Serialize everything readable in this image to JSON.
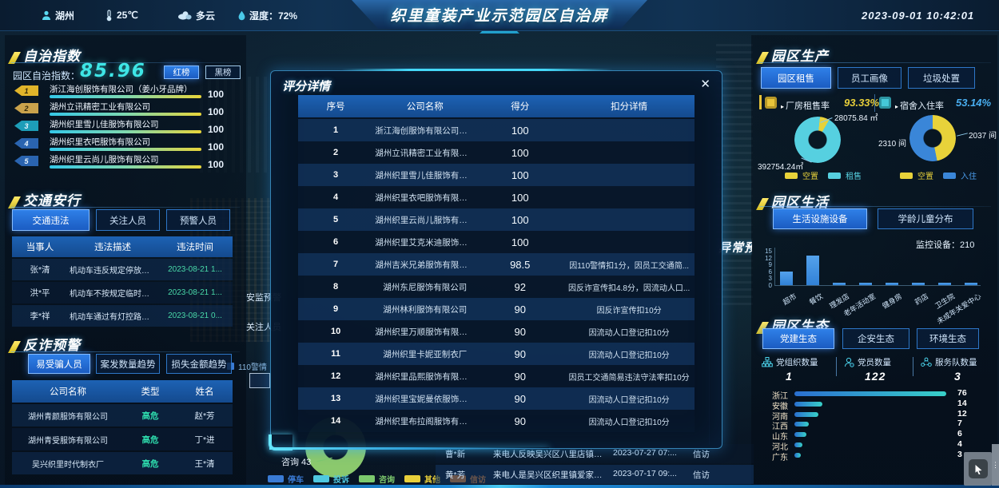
{
  "header": {
    "location": "湖州",
    "temperature": "25℃",
    "weather": "多云",
    "humidity": "湿度：72%",
    "title": "织里童装产业示范园区自治屏",
    "datetime": "2023-09-01 10:42:01"
  },
  "autonomy": {
    "title": "自治指数",
    "index_label": "园区自治指数：",
    "index_value": "85.96",
    "buttons": {
      "red": "红榜",
      "black": "黑榜"
    },
    "items": [
      {
        "rank": "1",
        "name": "浙江海创服饰有限公司（姜小牙品牌）",
        "score": "100",
        "badge_color": "#e0b42a"
      },
      {
        "rank": "2",
        "name": "湖州立讯精密工业有限公司",
        "score": "100",
        "badge_color": "#c9a24c"
      },
      {
        "rank": "3",
        "name": "湖州织里雪儿佳服饰有限公司",
        "score": "100",
        "badge_color": "#1d9db8"
      },
      {
        "rank": "4",
        "name": "湖州织里衣吧服饰有限公司",
        "score": "100",
        "badge_color": "#2a64b0"
      },
      {
        "rank": "5",
        "name": "湖州织里云尚儿服饰有限公司",
        "score": "100",
        "badge_color": "#2a64b0"
      }
    ]
  },
  "traffic": {
    "title": "交通安行",
    "tabs": [
      {
        "label": "交通违法",
        "active": true
      },
      {
        "label": "关注人员",
        "active": false
      },
      {
        "label": "预警人员",
        "active": false
      }
    ],
    "headers": [
      "当事人",
      "违法描述",
      "违法时间"
    ],
    "rows": [
      [
        "张*清",
        "机动车违反规定停放，...",
        "2023-08-21 1..."
      ],
      [
        "洪*平",
        "机动车不按规定临时停...",
        "2023-08-21 1..."
      ],
      [
        "李*祥",
        "机动车通过有灯控路口...",
        "2023-08-21 0..."
      ]
    ],
    "time_color": "#49d8a8"
  },
  "fraud": {
    "title": "反诈预警",
    "tabs": [
      {
        "label": "易受骗人员",
        "active": true
      },
      {
        "label": "案发数量趋势",
        "active": false
      },
      {
        "label": "损失金额趋势",
        "active": false
      }
    ],
    "headers": [
      "公司名称",
      "类型",
      "姓名"
    ],
    "rows": [
      [
        "湖州青颜服饰有限公司",
        "高危",
        "赵*芳"
      ],
      [
        "湖州青受服饰有限公司",
        "高危",
        "丁*进"
      ],
      [
        "吴兴织里时代制衣厂",
        "高危",
        "王*清"
      ]
    ],
    "risk_color": "#2fe0b0"
  },
  "modal": {
    "title": "评分详情",
    "close": "✕",
    "headers": [
      "序号",
      "公司名称",
      "得分",
      "扣分详情"
    ],
    "rows": [
      [
        "1",
        "浙江海创服饰有限公司（姜小牙...",
        "100",
        ""
      ],
      [
        "2",
        "湖州立讯精密工业有限公司",
        "100",
        ""
      ],
      [
        "3",
        "湖州织里雪儿佳服饰有限公司",
        "100",
        ""
      ],
      [
        "4",
        "湖州织里衣吧服饰有限公司",
        "100",
        ""
      ],
      [
        "5",
        "湖州织里云尚儿服饰有限公司",
        "100",
        ""
      ],
      [
        "6",
        "湖州织里艾克米迪服饰有限公司",
        "100",
        ""
      ],
      [
        "7",
        "湖州吉米兄弟服饰有限公司",
        "98.5",
        "因110警情扣1分，因员工交通简..."
      ],
      [
        "8",
        "湖州东尼服饰有限公司",
        "92",
        "因反诈宣传扣4.8分，因流动人口..."
      ],
      [
        "9",
        "湖州林利服饰有限公司",
        "90",
        "因反诈宣传扣10分"
      ],
      [
        "10",
        "湖州织里万顺服饰有限公司",
        "90",
        "因流动人口登记扣10分"
      ],
      [
        "11",
        "湖州织里卡妮亚制衣厂",
        "90",
        "因流动人口登记扣10分"
      ],
      [
        "12",
        "湖州织里品熙服饰有限公司",
        "90",
        "因员工交通简易违法守法率扣10分"
      ],
      [
        "13",
        "湖州织里宝妮曼依服饰有限公司",
        "90",
        "因流动人口登记扣10分"
      ],
      [
        "14",
        "湖州织里布拉阁服饰有限公司",
        "90",
        "因流动人口登记扣10分"
      ]
    ]
  },
  "production": {
    "title": "园区生产",
    "tabs": [
      {
        "label": "园区租售",
        "active": true
      },
      {
        "label": "员工画像",
        "active": false
      },
      {
        "label": "垃圾处置",
        "active": false
      }
    ],
    "stats": [
      {
        "label": "厂房租售率",
        "value": "93.33%",
        "color": "#e8cf3a"
      },
      {
        "label": "宿舍入住率",
        "value": "53.14%",
        "color": "#49aef0"
      }
    ],
    "donut_area": {
      "vacant_label": "28075.84 ㎡",
      "rented_label": "392754.24㎡",
      "vacant_value": 28075.84,
      "rented_value": 392754.24,
      "legend": [
        "空置",
        "租售"
      ],
      "colors": [
        "#e8d23a",
        "#56d0e0"
      ]
    },
    "donut_dorm": {
      "occupied_label": "2310 间",
      "vacant_label": "2037 间",
      "occupied_value": 2310,
      "vacant_value": 2037,
      "legend": [
        "空置",
        "入住"
      ],
      "colors": [
        "#e8d23a",
        "#3a86d8"
      ]
    }
  },
  "life": {
    "title": "园区生活",
    "tabs": [
      {
        "label": "生活设施设备",
        "active": true
      },
      {
        "label": "学龄儿童分布",
        "active": false
      }
    ],
    "monitor_label": "监控设备：210",
    "chart": {
      "type": "bar",
      "categories": [
        "超市",
        "餐饮",
        "理发店",
        "老年活动室",
        "健身房",
        "药店",
        "卫生院",
        "未成年关爱中心"
      ],
      "values": [
        6,
        13,
        1,
        1,
        1,
        1,
        1,
        1
      ],
      "yticks": [
        0,
        3,
        6,
        9,
        12,
        15
      ],
      "ymax": 15,
      "bar_color": "#3181d6"
    }
  },
  "ecology": {
    "title": "园区生态",
    "tabs": [
      {
        "label": "党建生态",
        "active": true
      },
      {
        "label": "企安生态",
        "active": false
      },
      {
        "label": "环境生态",
        "active": false
      }
    ],
    "stats": [
      {
        "label": "党组织数量",
        "value": "1"
      },
      {
        "label": "党员数量",
        "value": "122"
      },
      {
        "label": "服务队数量",
        "value": "3"
      }
    ],
    "chart": {
      "type": "hbar",
      "categories": [
        "浙江",
        "安徽",
        "河南",
        "江西",
        "山东",
        "河北",
        "广东"
      ],
      "values": [
        76,
        14,
        12,
        7,
        6,
        4,
        3
      ],
      "max": 76
    }
  },
  "background": {
    "abnormal_title": "异常预警",
    "fragment_safety": "安监预警",
    "fragment_follow": "关注人员",
    "legend_110": "110警情",
    "consult_label": "咨询 43",
    "call_legend": [
      {
        "label": "停车",
        "color": "#3a7bd5"
      },
      {
        "label": "投诉",
        "color": "#4ec8e0"
      },
      {
        "label": "咨询",
        "color": "#7cc96d"
      },
      {
        "label": "其他",
        "color": "#e8cf3a"
      },
      {
        "label": "信访",
        "color": "#f0872e"
      }
    ],
    "visit_rows": [
      [
        "曹*新",
        "来电人反映吴兴区八里店镇吴兴...",
        "2023-07-27 07:...",
        "信访"
      ],
      [
        "黄*芳",
        "来电人是吴兴区织里镇爱家华府...",
        "2023-07-17 09:...",
        "信访"
      ]
    ]
  }
}
